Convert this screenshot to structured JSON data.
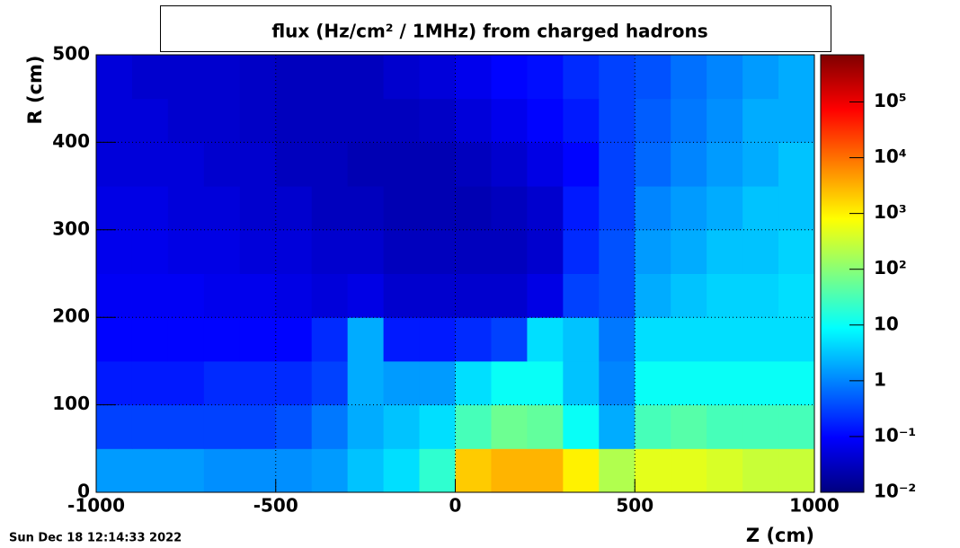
{
  "chart_data": {
    "type": "heatmap",
    "title": "flux (Hz/cm² / 1MHz) from   charged hadrons",
    "x_label": "Z (cm)",
    "y_label": "R (cm)",
    "timestamp": "Sun Dec 18 12:14:33 2022",
    "xlim": [
      -1000,
      1000
    ],
    "xticks": [
      -1000,
      -500,
      0,
      500,
      1000
    ],
    "ylim": [
      0,
      500
    ],
    "yticks": [
      0,
      100,
      200,
      300,
      400,
      500
    ],
    "zlim": [
      0.01,
      700000
    ],
    "zlog": true,
    "zticks": [
      {
        "value": 0.01,
        "label": "10⁻²"
      },
      {
        "value": 0.1,
        "label": "10⁻¹"
      },
      1,
      10,
      {
        "value": 100,
        "label": "10²"
      },
      {
        "value": 1000,
        "label": "10³"
      },
      {
        "value": 10000,
        "label": "10⁴"
      },
      {
        "value": 100000,
        "label": "10⁵"
      }
    ],
    "grid": true,
    "xbins": [
      -1000,
      -900,
      -800,
      -700,
      -600,
      -500,
      -400,
      -300,
      -200,
      -100,
      0,
      100,
      200,
      300,
      400,
      500,
      600,
      700,
      800,
      900,
      1000
    ],
    "ybins": [
      0,
      50,
      100,
      150,
      200,
      250,
      300,
      350,
      400,
      450,
      500
    ],
    "z": [
      [
        1.5,
        1.5,
        1.5,
        1.2,
        1.2,
        1.2,
        1.5,
        3,
        5,
        20,
        2000,
        3000,
        3000,
        1000,
        200,
        500,
        500,
        400,
        300,
        300
      ],
      [
        0.3,
        0.3,
        0.3,
        0.3,
        0.3,
        0.4,
        0.8,
        2,
        3,
        5,
        30,
        60,
        50,
        10,
        2,
        30,
        40,
        30,
        30,
        30
      ],
      [
        0.15,
        0.15,
        0.15,
        0.2,
        0.2,
        0.2,
        0.3,
        2,
        1.5,
        1.5,
        5,
        10,
        10,
        3,
        1,
        10,
        10,
        10,
        10,
        10
      ],
      [
        0.1,
        0.1,
        0.1,
        0.1,
        0.1,
        0.1,
        0.2,
        2,
        0.15,
        0.15,
        0.2,
        0.3,
        5,
        3,
        0.8,
        5,
        5,
        5,
        5,
        5
      ],
      [
        0.08,
        0.08,
        0.08,
        0.07,
        0.07,
        0.06,
        0.05,
        0.06,
        0.04,
        0.04,
        0.04,
        0.04,
        0.06,
        0.3,
        0.4,
        2,
        3,
        4,
        4,
        5
      ],
      [
        0.07,
        0.07,
        0.06,
        0.06,
        0.05,
        0.05,
        0.04,
        0.04,
        0.03,
        0.03,
        0.03,
        0.03,
        0.04,
        0.2,
        0.4,
        1.5,
        2,
        3,
        3,
        4
      ],
      [
        0.06,
        0.06,
        0.05,
        0.05,
        0.04,
        0.04,
        0.03,
        0.03,
        0.025,
        0.025,
        0.025,
        0.03,
        0.04,
        0.15,
        0.3,
        1,
        1.5,
        2,
        3,
        3
      ],
      [
        0.05,
        0.05,
        0.05,
        0.04,
        0.04,
        0.03,
        0.03,
        0.025,
        0.025,
        0.025,
        0.03,
        0.04,
        0.06,
        0.1,
        0.3,
        0.6,
        1,
        1.5,
        2,
        3
      ],
      [
        0.05,
        0.05,
        0.04,
        0.04,
        0.035,
        0.03,
        0.03,
        0.03,
        0.03,
        0.035,
        0.05,
        0.07,
        0.1,
        0.15,
        0.3,
        0.5,
        0.8,
        1.2,
        2,
        2
      ],
      [
        0.05,
        0.04,
        0.04,
        0.04,
        0.035,
        0.03,
        0.03,
        0.03,
        0.04,
        0.05,
        0.07,
        0.1,
        0.12,
        0.2,
        0.3,
        0.4,
        0.7,
        1,
        1.5,
        2
      ]
    ]
  }
}
